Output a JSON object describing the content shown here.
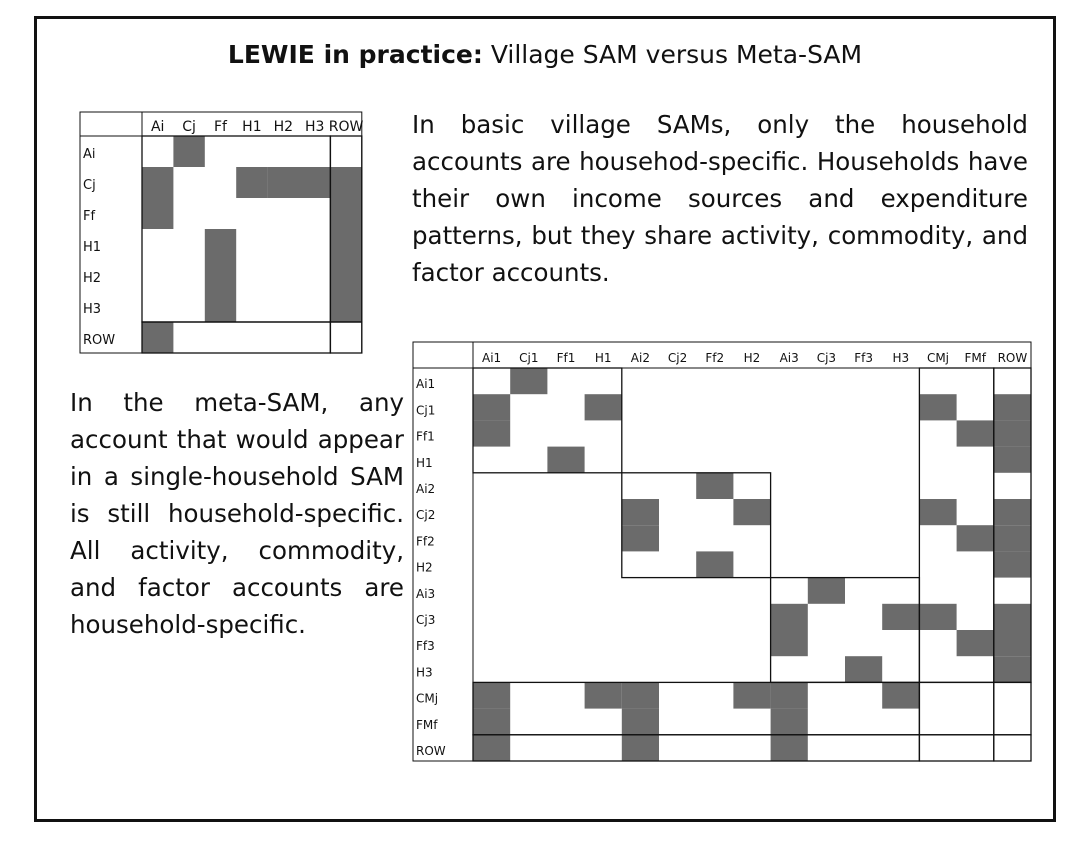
{
  "title": {
    "bold": "LEWIE in practice:",
    "rest": " Village SAM versus Meta-SAM"
  },
  "paragraph_village": "In basic village SAMs, only the household accounts are househod-specific. Households have their own income sources and expenditure patterns, but they share activity, commodity, and factor accounts.",
  "paragraph_meta": "In the meta-SAM, any account that would appear in a single-household SAM is still household-specific. All activity, commodity, and factor accounts are household-specific.",
  "village_sam": {
    "labels": [
      "Ai",
      "Cj",
      "Ff",
      "H1",
      "H2",
      "H3",
      "ROW"
    ],
    "shaded": [
      [
        0,
        1
      ],
      [
        1,
        0
      ],
      [
        1,
        3
      ],
      [
        1,
        4
      ],
      [
        1,
        5
      ],
      [
        1,
        6
      ],
      [
        2,
        0
      ],
      [
        2,
        6
      ],
      [
        3,
        2
      ],
      [
        3,
        6
      ],
      [
        4,
        2
      ],
      [
        4,
        6
      ],
      [
        5,
        2
      ],
      [
        5,
        6
      ],
      [
        6,
        0
      ]
    ],
    "blocks": [
      {
        "r0": 0,
        "c0": 0,
        "r1": 5,
        "c1": 5
      },
      {
        "r0": 0,
        "c0": 6,
        "r1": 5,
        "c1": 6
      },
      {
        "r0": 6,
        "c0": 0,
        "r1": 6,
        "c1": 5
      },
      {
        "r0": 6,
        "c0": 6,
        "r1": 6,
        "c1": 6
      }
    ]
  },
  "meta_sam": {
    "labels": [
      "Ai1",
      "Cj1",
      "Ff1",
      "H1",
      "Ai2",
      "Cj2",
      "Ff2",
      "H2",
      "Ai3",
      "Cj3",
      "Ff3",
      "H3",
      "CMj",
      "FMf",
      "ROW"
    ],
    "shaded": [
      [
        0,
        1
      ],
      [
        1,
        0
      ],
      [
        1,
        3
      ],
      [
        1,
        12
      ],
      [
        1,
        14
      ],
      [
        2,
        0
      ],
      [
        2,
        13
      ],
      [
        2,
        14
      ],
      [
        3,
        2
      ],
      [
        3,
        14
      ],
      [
        4,
        6
      ],
      [
        5,
        4
      ],
      [
        5,
        7
      ],
      [
        5,
        12
      ],
      [
        5,
        14
      ],
      [
        6,
        4
      ],
      [
        6,
        13
      ],
      [
        6,
        14
      ],
      [
        7,
        6
      ],
      [
        7,
        14
      ],
      [
        8,
        9
      ],
      [
        9,
        8
      ],
      [
        9,
        11
      ],
      [
        9,
        12
      ],
      [
        9,
        14
      ],
      [
        10,
        8
      ],
      [
        10,
        13
      ],
      [
        10,
        14
      ],
      [
        11,
        10
      ],
      [
        11,
        14
      ],
      [
        12,
        0
      ],
      [
        12,
        3
      ],
      [
        12,
        4
      ],
      [
        12,
        7
      ],
      [
        12,
        8
      ],
      [
        12,
        11
      ],
      [
        13,
        0
      ],
      [
        13,
        4
      ],
      [
        13,
        8
      ],
      [
        14,
        0
      ],
      [
        14,
        4
      ],
      [
        14,
        8
      ]
    ],
    "blocks": [
      {
        "r0": 0,
        "c0": 0,
        "r1": 3,
        "c1": 3
      },
      {
        "r0": 4,
        "c0": 4,
        "r1": 7,
        "c1": 7
      },
      {
        "r0": 8,
        "c0": 8,
        "r1": 11,
        "c1": 11
      },
      {
        "r0": 0,
        "c0": 12,
        "r1": 11,
        "c1": 13
      },
      {
        "r0": 0,
        "c0": 14,
        "r1": 11,
        "c1": 14
      },
      {
        "r0": 12,
        "c0": 0,
        "r1": 13,
        "c1": 11
      },
      {
        "r0": 12,
        "c0": 12,
        "r1": 13,
        "c1": 13
      },
      {
        "r0": 12,
        "c0": 14,
        "r1": 13,
        "c1": 14
      },
      {
        "r0": 14,
        "c0": 0,
        "r1": 14,
        "c1": 11
      },
      {
        "r0": 14,
        "c0": 12,
        "r1": 14,
        "c1": 13
      },
      {
        "r0": 14,
        "c0": 14,
        "r1": 14,
        "c1": 14
      }
    ]
  },
  "colors": {
    "shade": "#6b6b6b",
    "line": "#111111",
    "background": "#ffffff"
  }
}
